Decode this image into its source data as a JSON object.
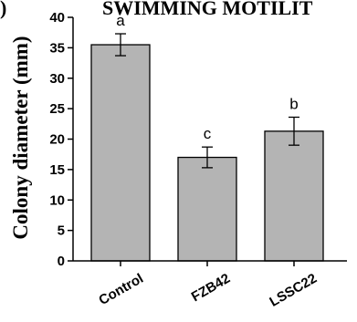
{
  "chart_data": {
    "type": "bar",
    "panel_label": ")",
    "title": "SWIMMING MOTILIT",
    "ylabel": "Colony diameter (mm)",
    "xlabel": "",
    "categories": [
      "Control",
      "FZB42",
      "LSSC22"
    ],
    "values": [
      35.5,
      17.0,
      21.3
    ],
    "errors": [
      1.8,
      1.7,
      2.3
    ],
    "significance": [
      "a",
      "c",
      "b"
    ],
    "ylim": [
      0,
      40
    ],
    "yticks": [
      "0",
      "5",
      "10",
      "15",
      "20",
      "25",
      "30",
      "35",
      "40"
    ],
    "grid": false,
    "bar_color": "#b4b4b4",
    "edge_color": "#000000"
  }
}
